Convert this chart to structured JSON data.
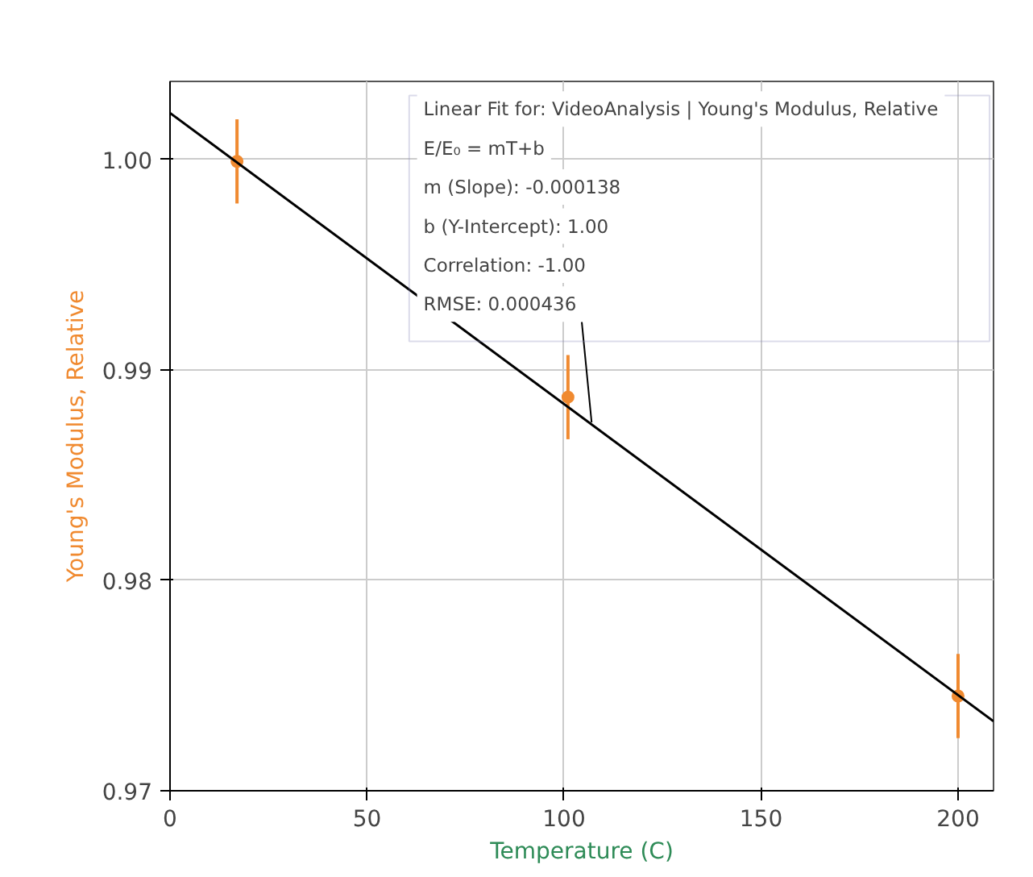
{
  "chart_data": {
    "type": "scatter",
    "xlabel": "Temperature (C)",
    "ylabel": "Young's Modulus, Relative",
    "xlim": [
      0,
      209
    ],
    "ylim": [
      0.97,
      1.0037
    ],
    "xticks": [
      0,
      50,
      100,
      150,
      200
    ],
    "yticks": [
      {
        "value": 0.97,
        "label": "0.97"
      },
      {
        "value": 0.98,
        "label": "0.98"
      },
      {
        "value": 0.99,
        "label": "0.99"
      },
      {
        "value": 1.0,
        "label": "1.00"
      }
    ],
    "grid": true,
    "series": [
      {
        "color": "#f08a30",
        "marker": "circle",
        "x": [
          17,
          101,
          200
        ],
        "values": [
          0.9999,
          0.9887,
          0.9745
        ],
        "errors": [
          0.002,
          0.002,
          0.002
        ]
      },
      {
        "type": "line",
        "color": "#000000",
        "x": [
          0,
          209
        ],
        "values": [
          1.0022,
          0.9733
        ]
      }
    ],
    "annotations": [
      "Linear Fit for: VideoAnalysis | Young's Modulus, Relative",
      "E/E₀ = mT+b",
      "m (Slope): -0.000138",
      "b (Y-Intercept): 1.00",
      "Correlation: -1.00",
      {
        "text": "RMSE: 0.000436",
        "x": 107,
        "y": 0.9875
      }
    ]
  }
}
